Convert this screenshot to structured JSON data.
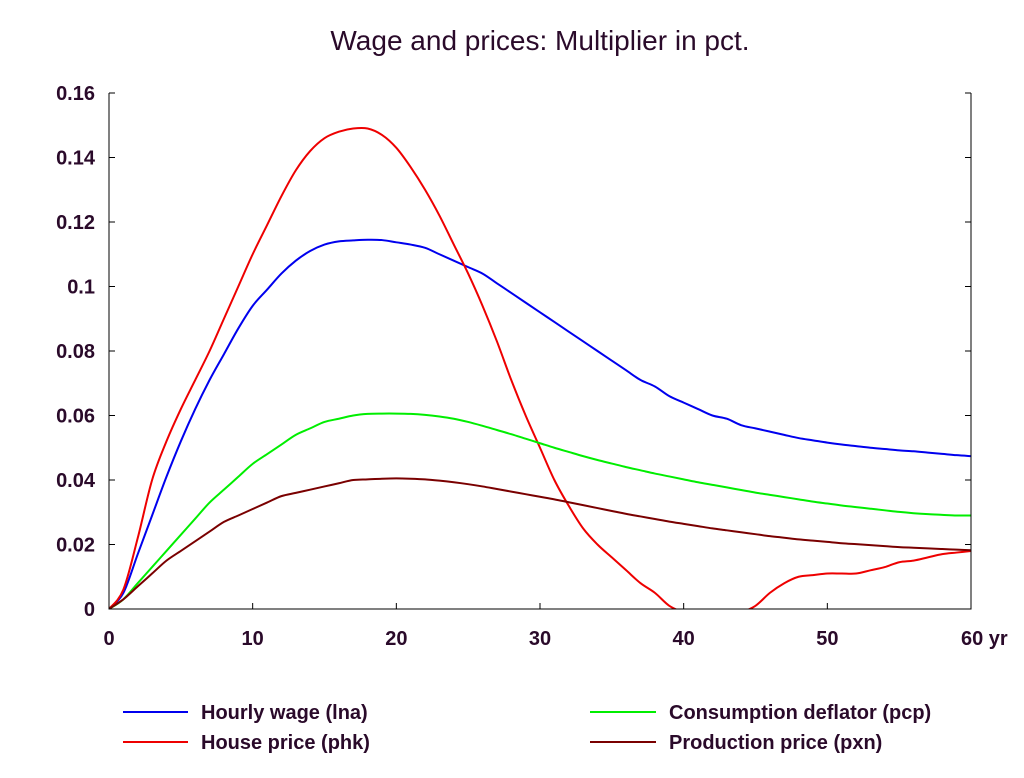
{
  "chart_data": {
    "type": "line",
    "title": "Wage and prices: Multiplier in pct.",
    "xlabel": "",
    "ylabel": "",
    "x_unit": "yr",
    "xlim": [
      0,
      60
    ],
    "ylim": [
      0,
      0.16
    ],
    "x_ticks": [
      0,
      10,
      20,
      30,
      40,
      50,
      60
    ],
    "x_tick_labels": [
      "0",
      "10",
      "20",
      "30",
      "40",
      "50",
      "60 yr"
    ],
    "y_ticks": [
      0,
      0.02,
      0.04,
      0.06,
      0.08,
      0.1,
      0.12,
      0.14,
      0.16
    ],
    "y_tick_labels": [
      "0",
      "0.02",
      "0.04",
      "0.06",
      "0.08",
      "0.1",
      "0.12",
      "0.14",
      "0.16"
    ],
    "grid": false,
    "legend_position": "bottom",
    "x": [
      0,
      1,
      2,
      3,
      4,
      5,
      6,
      7,
      8,
      9,
      10,
      11,
      12,
      13,
      14,
      15,
      16,
      17,
      18,
      19,
      20,
      21,
      22,
      23,
      24,
      25,
      26,
      27,
      28,
      29,
      30,
      31,
      32,
      33,
      34,
      35,
      36,
      37,
      38,
      39,
      40,
      41,
      42,
      43,
      44,
      45,
      46,
      47,
      48,
      49,
      50,
      51,
      52,
      53,
      54,
      55,
      56,
      57,
      58,
      59,
      60
    ],
    "series": [
      {
        "name": "Hourly wage (lna)",
        "color": "#0000ee",
        "values": [
          0,
          0.005,
          0.017,
          0.029,
          0.041,
          0.052,
          0.062,
          0.071,
          0.079,
          0.087,
          0.094,
          0.099,
          0.104,
          0.108,
          0.111,
          0.113,
          0.114,
          0.1143,
          0.1145,
          0.1144,
          0.1137,
          0.113,
          0.112,
          0.11,
          0.108,
          0.106,
          0.104,
          0.101,
          0.098,
          0.095,
          0.092,
          0.089,
          0.086,
          0.083,
          0.08,
          0.077,
          0.074,
          0.071,
          0.069,
          0.066,
          0.064,
          0.062,
          0.06,
          0.059,
          0.057,
          0.056,
          0.055,
          0.054,
          0.053,
          0.0523,
          0.0516,
          0.051,
          0.0505,
          0.05,
          0.0496,
          0.0492,
          0.0489,
          0.0485,
          0.0481,
          0.0477,
          0.0474
        ]
      },
      {
        "name": "House price (phk)",
        "color": "#ee0000",
        "values": [
          0,
          0.006,
          0.022,
          0.04,
          0.052,
          0.062,
          0.071,
          0.08,
          0.09,
          0.1,
          0.11,
          0.119,
          0.128,
          0.136,
          0.142,
          0.146,
          0.148,
          0.149,
          0.149,
          0.147,
          0.143,
          0.137,
          0.13,
          0.122,
          0.113,
          0.104,
          0.094,
          0.083,
          0.071,
          0.06,
          0.05,
          0.04,
          0.032,
          0.025,
          0.02,
          0.016,
          0.012,
          0.008,
          0.005,
          0.001,
          -0.001,
          -0.002,
          -0.003,
          -0.002,
          -0.001,
          0.001,
          0.005,
          0.008,
          0.01,
          0.0105,
          0.011,
          0.011,
          0.011,
          0.012,
          0.013,
          0.0145,
          0.015,
          0.016,
          0.017,
          0.0175,
          0.018
        ]
      },
      {
        "name": "Consumption deflator (pcp)",
        "color": "#00ee00",
        "values": [
          0,
          0.003,
          0.008,
          0.013,
          0.018,
          0.023,
          0.028,
          0.033,
          0.037,
          0.041,
          0.045,
          0.048,
          0.051,
          0.054,
          0.056,
          0.058,
          0.059,
          0.06,
          0.0605,
          0.0606,
          0.0606,
          0.0605,
          0.0602,
          0.0597,
          0.059,
          0.058,
          0.0568,
          0.0555,
          0.0542,
          0.0528,
          0.0514,
          0.05,
          0.0487,
          0.0474,
          0.0462,
          0.0451,
          0.044,
          0.043,
          0.042,
          0.0411,
          0.0402,
          0.0393,
          0.0385,
          0.0377,
          0.0369,
          0.0361,
          0.0354,
          0.0347,
          0.034,
          0.0333,
          0.0327,
          0.0321,
          0.0316,
          0.0311,
          0.0306,
          0.0301,
          0.0297,
          0.0294,
          0.0292,
          0.029,
          0.029
        ]
      },
      {
        "name": "Production price (pxn)",
        "color": "#7a0000",
        "values": [
          0,
          0.003,
          0.007,
          0.011,
          0.015,
          0.018,
          0.021,
          0.024,
          0.027,
          0.029,
          0.031,
          0.033,
          0.035,
          0.036,
          0.037,
          0.038,
          0.039,
          0.04,
          0.0402,
          0.0404,
          0.0405,
          0.0404,
          0.0402,
          0.0398,
          0.0393,
          0.0387,
          0.038,
          0.0372,
          0.0364,
          0.0356,
          0.0348,
          0.034,
          0.0331,
          0.0322,
          0.0313,
          0.0304,
          0.0295,
          0.0287,
          0.0279,
          0.0271,
          0.0264,
          0.0257,
          0.025,
          0.0244,
          0.0238,
          0.0232,
          0.0226,
          0.0221,
          0.0216,
          0.0212,
          0.0208,
          0.0204,
          0.0201,
          0.0198,
          0.0195,
          0.0192,
          0.019,
          0.0188,
          0.0186,
          0.0184,
          0.0182
        ]
      }
    ]
  }
}
